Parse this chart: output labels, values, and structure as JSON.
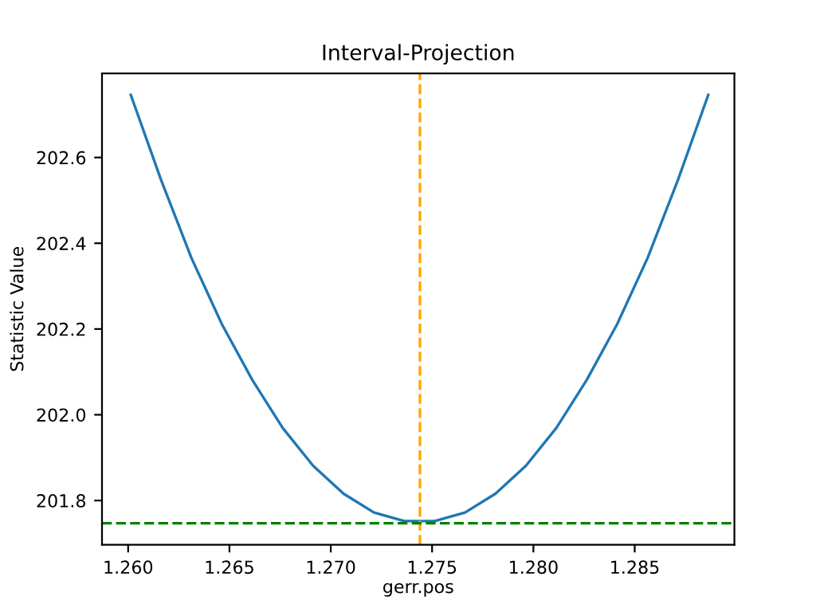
{
  "chart_data": {
    "type": "line",
    "title": "Interval-Projection",
    "xlabel": "gerr.pos",
    "ylabel": "Statistic Value",
    "x": [
      1.26013,
      1.26163,
      1.26313,
      1.26463,
      1.26613,
      1.26763,
      1.26913,
      1.27063,
      1.27213,
      1.27363,
      1.27513,
      1.27663,
      1.27813,
      1.27963,
      1.28113,
      1.28263,
      1.28413,
      1.28563,
      1.28713,
      1.28863
    ],
    "series": [
      {
        "color": "#1f77b4",
        "values": [
          202.746,
          202.547,
          202.365,
          202.211,
          202.081,
          201.969,
          201.881,
          201.816,
          201.772,
          201.752,
          201.752,
          201.772,
          201.816,
          201.881,
          201.969,
          202.081,
          202.211,
          202.365,
          202.547,
          202.746
        ]
      }
    ],
    "ref_lines": [
      {
        "axis": "x",
        "value": 1.2744,
        "color": "#ffa500",
        "line_style": "dashed"
      },
      {
        "axis": "y",
        "value": 201.747,
        "color": "#008000",
        "line_style": "dashed"
      }
    ],
    "xlim": [
      1.25871,
      1.28992
    ],
    "ylim": [
      201.697,
      202.796
    ],
    "xticks": [
      {
        "value": 1.26,
        "label": "1.260"
      },
      1.265,
      {
        "value": 1.27,
        "label": "1.270"
      },
      1.275,
      {
        "value": 1.28,
        "label": "1.280"
      },
      1.285
    ],
    "yticks": [
      201.8,
      {
        "value": 202.0,
        "label": "202.0"
      },
      202.2,
      202.4,
      202.6
    ],
    "grid": false,
    "legend": false,
    "marker": "none",
    "line_style": "solid"
  }
}
